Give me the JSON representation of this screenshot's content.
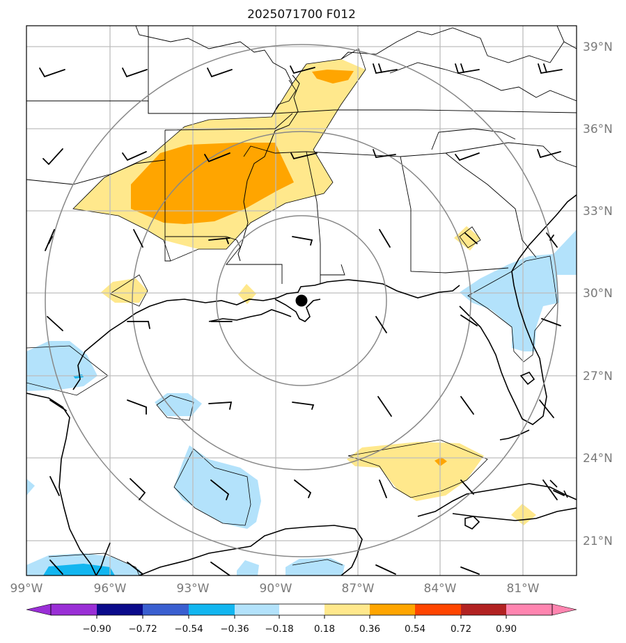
{
  "title": "2025071700 F012",
  "lat_labels": [
    "39°N",
    "36°N",
    "33°N",
    "30°N",
    "27°N",
    "24°N",
    "21°N"
  ],
  "lon_labels": [
    "99°W",
    "96°W",
    "93°W",
    "90°W",
    "87°W",
    "84°W",
    "81°W"
  ],
  "colorbar": {
    "ticks": [
      "−0.90",
      "−0.72",
      "−0.54",
      "−0.36",
      "−0.18",
      "0.18",
      "0.36",
      "0.54",
      "0.72",
      "0.90"
    ],
    "colors": [
      "#9a2fd6",
      "#0a0a8a",
      "#3a5fd0",
      "#12b6f0",
      "#b3e2fb",
      "#ffffff",
      "#ffe88c",
      "#ffa500",
      "#ff4500",
      "#b22222",
      "#ff85b0"
    ]
  },
  "colors": {
    "coast": "#000000",
    "grid": "#bdbdbd",
    "range_rings": "#888888",
    "barbs": "#000000"
  },
  "map_extent": {
    "lon": [
      -99,
      -79.7
    ],
    "lat": [
      19.6,
      39.6
    ]
  },
  "storm_center": {
    "lon": -88.9,
    "lat": 29.7
  },
  "range_rings_deg": [
    2.6,
    5.9,
    9.2
  ]
}
